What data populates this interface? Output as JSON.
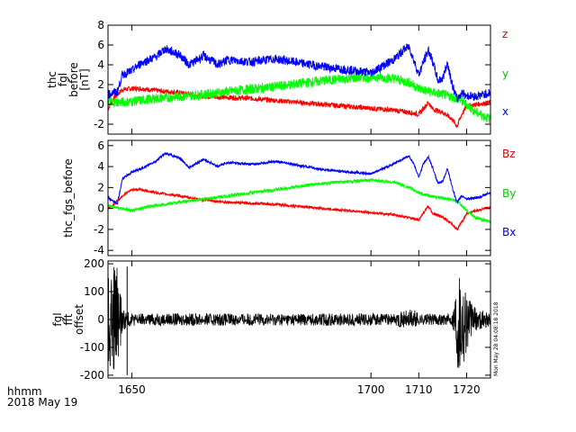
{
  "colors": {
    "red": "#ff0000",
    "green": "#00ff00",
    "blue": "#0000ff",
    "black": "#000000",
    "z": "#e00000",
    "y": "#00e000",
    "x": "#0000e0"
  },
  "footer": {
    "line1": "hhmm",
    "line2": "2018 May 19"
  },
  "side_note": "Mon May 28 04:08:18 2018",
  "chart_data": [
    {
      "type": "line",
      "ylabel_lines": [
        "thc",
        "fgl",
        "before",
        "[nT]"
      ],
      "ylim": [
        -3,
        8
      ],
      "yticks": [
        -2,
        0,
        2,
        4,
        6,
        8
      ],
      "xlim": [
        1645,
        1725
      ],
      "xticks": [
        1650,
        1700,
        1710,
        1720
      ],
      "legend": [
        "z",
        "y",
        "x"
      ],
      "series": [
        {
          "name": "z",
          "color": "#ff0000",
          "noise": 0.25,
          "x": [
            1645,
            1646,
            1648,
            1650,
            1652,
            1655,
            1660,
            1665,
            1670,
            1675,
            1680,
            1690,
            1700,
            1705,
            1708,
            1710,
            1711,
            1712,
            1713,
            1715,
            1717,
            1718,
            1719,
            1720,
            1722,
            1725
          ],
          "y": [
            -0.5,
            0.5,
            1.5,
            1.6,
            1.6,
            1.4,
            1.2,
            0.8,
            0.7,
            0.6,
            0.4,
            0,
            -0.4,
            -0.6,
            -0.8,
            -1.0,
            -0.4,
            0.2,
            -0.5,
            -0.8,
            -1.5,
            -2.2,
            -1.0,
            -0.2,
            0,
            0.2
          ]
        },
        {
          "name": "y",
          "color": "#00ff00",
          "noise": 0.5,
          "x": [
            1645,
            1648,
            1650,
            1655,
            1660,
            1665,
            1670,
            1680,
            1690,
            1700,
            1705,
            1708,
            1710,
            1712,
            1715,
            1718,
            1720,
            1722,
            1725
          ],
          "y": [
            0.3,
            0.2,
            0.3,
            0.6,
            0.8,
            1.0,
            1.3,
            1.8,
            2.4,
            2.8,
            2.6,
            2.2,
            1.6,
            1.3,
            1.0,
            0.6,
            0,
            -0.8,
            -1.5
          ]
        },
        {
          "name": "x",
          "color": "#0000ff",
          "noise": 0.45,
          "x": [
            1645,
            1647,
            1648,
            1650,
            1652,
            1655,
            1657,
            1660,
            1662,
            1665,
            1668,
            1670,
            1675,
            1680,
            1690,
            1700,
            1705,
            1707,
            1708,
            1709,
            1710,
            1711,
            1712,
            1713,
            1714,
            1715,
            1716,
            1717,
            1718,
            1719,
            1720,
            1722,
            1725
          ],
          "y": [
            1.0,
            1.3,
            3.0,
            3.4,
            4.2,
            4.8,
            5.6,
            5.0,
            4.0,
            4.9,
            4.0,
            4.5,
            4.3,
            4.6,
            3.8,
            3.2,
            4.6,
            5.6,
            5.8,
            4.4,
            3.0,
            4.3,
            5.5,
            4.2,
            2.4,
            2.6,
            4.2,
            2.0,
            0.5,
            1.2,
            0.9,
            0.8,
            1.2
          ]
        }
      ]
    },
    {
      "type": "line",
      "ylabel_lines": [
        "thc_fgs_before"
      ],
      "ylim": [
        -4.5,
        6.5
      ],
      "yticks": [
        -4,
        -2,
        0,
        2,
        4,
        6
      ],
      "xlim": [
        1645,
        1725
      ],
      "xticks": [
        1650,
        1700,
        1710,
        1720
      ],
      "legend": [
        "Bz",
        "By",
        "Bx"
      ],
      "series": [
        {
          "name": "Bz",
          "color": "#ff0000",
          "noise": 0.12,
          "x": [
            1645,
            1646,
            1648,
            1650,
            1652,
            1655,
            1660,
            1665,
            1670,
            1680,
            1690,
            1700,
            1705,
            1708,
            1710,
            1711,
            1712,
            1713,
            1715,
            1717,
            1718,
            1719,
            1720,
            1722,
            1725
          ],
          "y": [
            0,
            0.3,
            1.2,
            1.8,
            1.8,
            1.5,
            1.2,
            0.8,
            0.6,
            0.4,
            0,
            -0.4,
            -0.6,
            -0.9,
            -1.1,
            -0.4,
            0.2,
            -0.5,
            -0.8,
            -1.5,
            -2.0,
            -1.3,
            -0.5,
            -0.2,
            0.1
          ]
        },
        {
          "name": "By",
          "color": "#00ff00",
          "noise": 0.15,
          "x": [
            1645,
            1648,
            1650,
            1655,
            1660,
            1665,
            1670,
            1680,
            1690,
            1700,
            1705,
            1708,
            1710,
            1712,
            1715,
            1718,
            1720,
            1722,
            1725
          ],
          "y": [
            0.3,
            0,
            -0.2,
            0.3,
            0.6,
            0.9,
            1.2,
            1.8,
            2.4,
            2.7,
            2.5,
            2.0,
            1.5,
            1.2,
            1.0,
            0.7,
            -0.2,
            -0.9,
            -1.3
          ]
        },
        {
          "name": "Bx",
          "color": "#0000ff",
          "noise": 0.12,
          "x": [
            1645,
            1647,
            1648,
            1650,
            1652,
            1655,
            1657,
            1660,
            1662,
            1665,
            1668,
            1670,
            1675,
            1680,
            1690,
            1700,
            1705,
            1707,
            1708,
            1709,
            1710,
            1711,
            1712,
            1713,
            1714,
            1715,
            1716,
            1717,
            1718,
            1719,
            1720,
            1722,
            1725
          ],
          "y": [
            1.0,
            0.5,
            2.8,
            3.5,
            3.8,
            4.5,
            5.3,
            4.8,
            3.9,
            4.7,
            4.0,
            4.4,
            4.2,
            4.5,
            3.7,
            3.3,
            4.3,
            4.8,
            5.0,
            4.2,
            3.0,
            4.3,
            4.9,
            3.8,
            2.4,
            2.6,
            3.8,
            2.0,
            0.6,
            1.2,
            0.9,
            1.0,
            1.5
          ]
        }
      ]
    },
    {
      "type": "line",
      "ylabel_lines": [
        "fgl",
        "fft",
        "offset"
      ],
      "ylim": [
        -210,
        210
      ],
      "yticks": [
        -200,
        -100,
        0,
        100,
        200
      ],
      "xlim": [
        1645,
        1725
      ],
      "xticks": [
        1650,
        1700,
        1710,
        1720
      ],
      "xtick_labels": [
        "1650",
        "1700",
        "1710",
        "1720"
      ],
      "series": [
        {
          "name": "",
          "color": "#000000",
          "x": [
            1645,
            1647,
            1648,
            1650,
            1660,
            1670,
            1680,
            1690,
            1700,
            1705,
            1709,
            1710,
            1711,
            1715,
            1717,
            1718,
            1719,
            1720,
            1721,
            1722,
            1725
          ],
          "y": [
            190,
            190,
            40,
            22,
            22,
            22,
            22,
            22,
            22,
            22,
            40,
            22,
            20,
            20,
            20,
            185,
            190,
            120,
            60,
            40,
            25
          ]
        }
      ]
    }
  ]
}
